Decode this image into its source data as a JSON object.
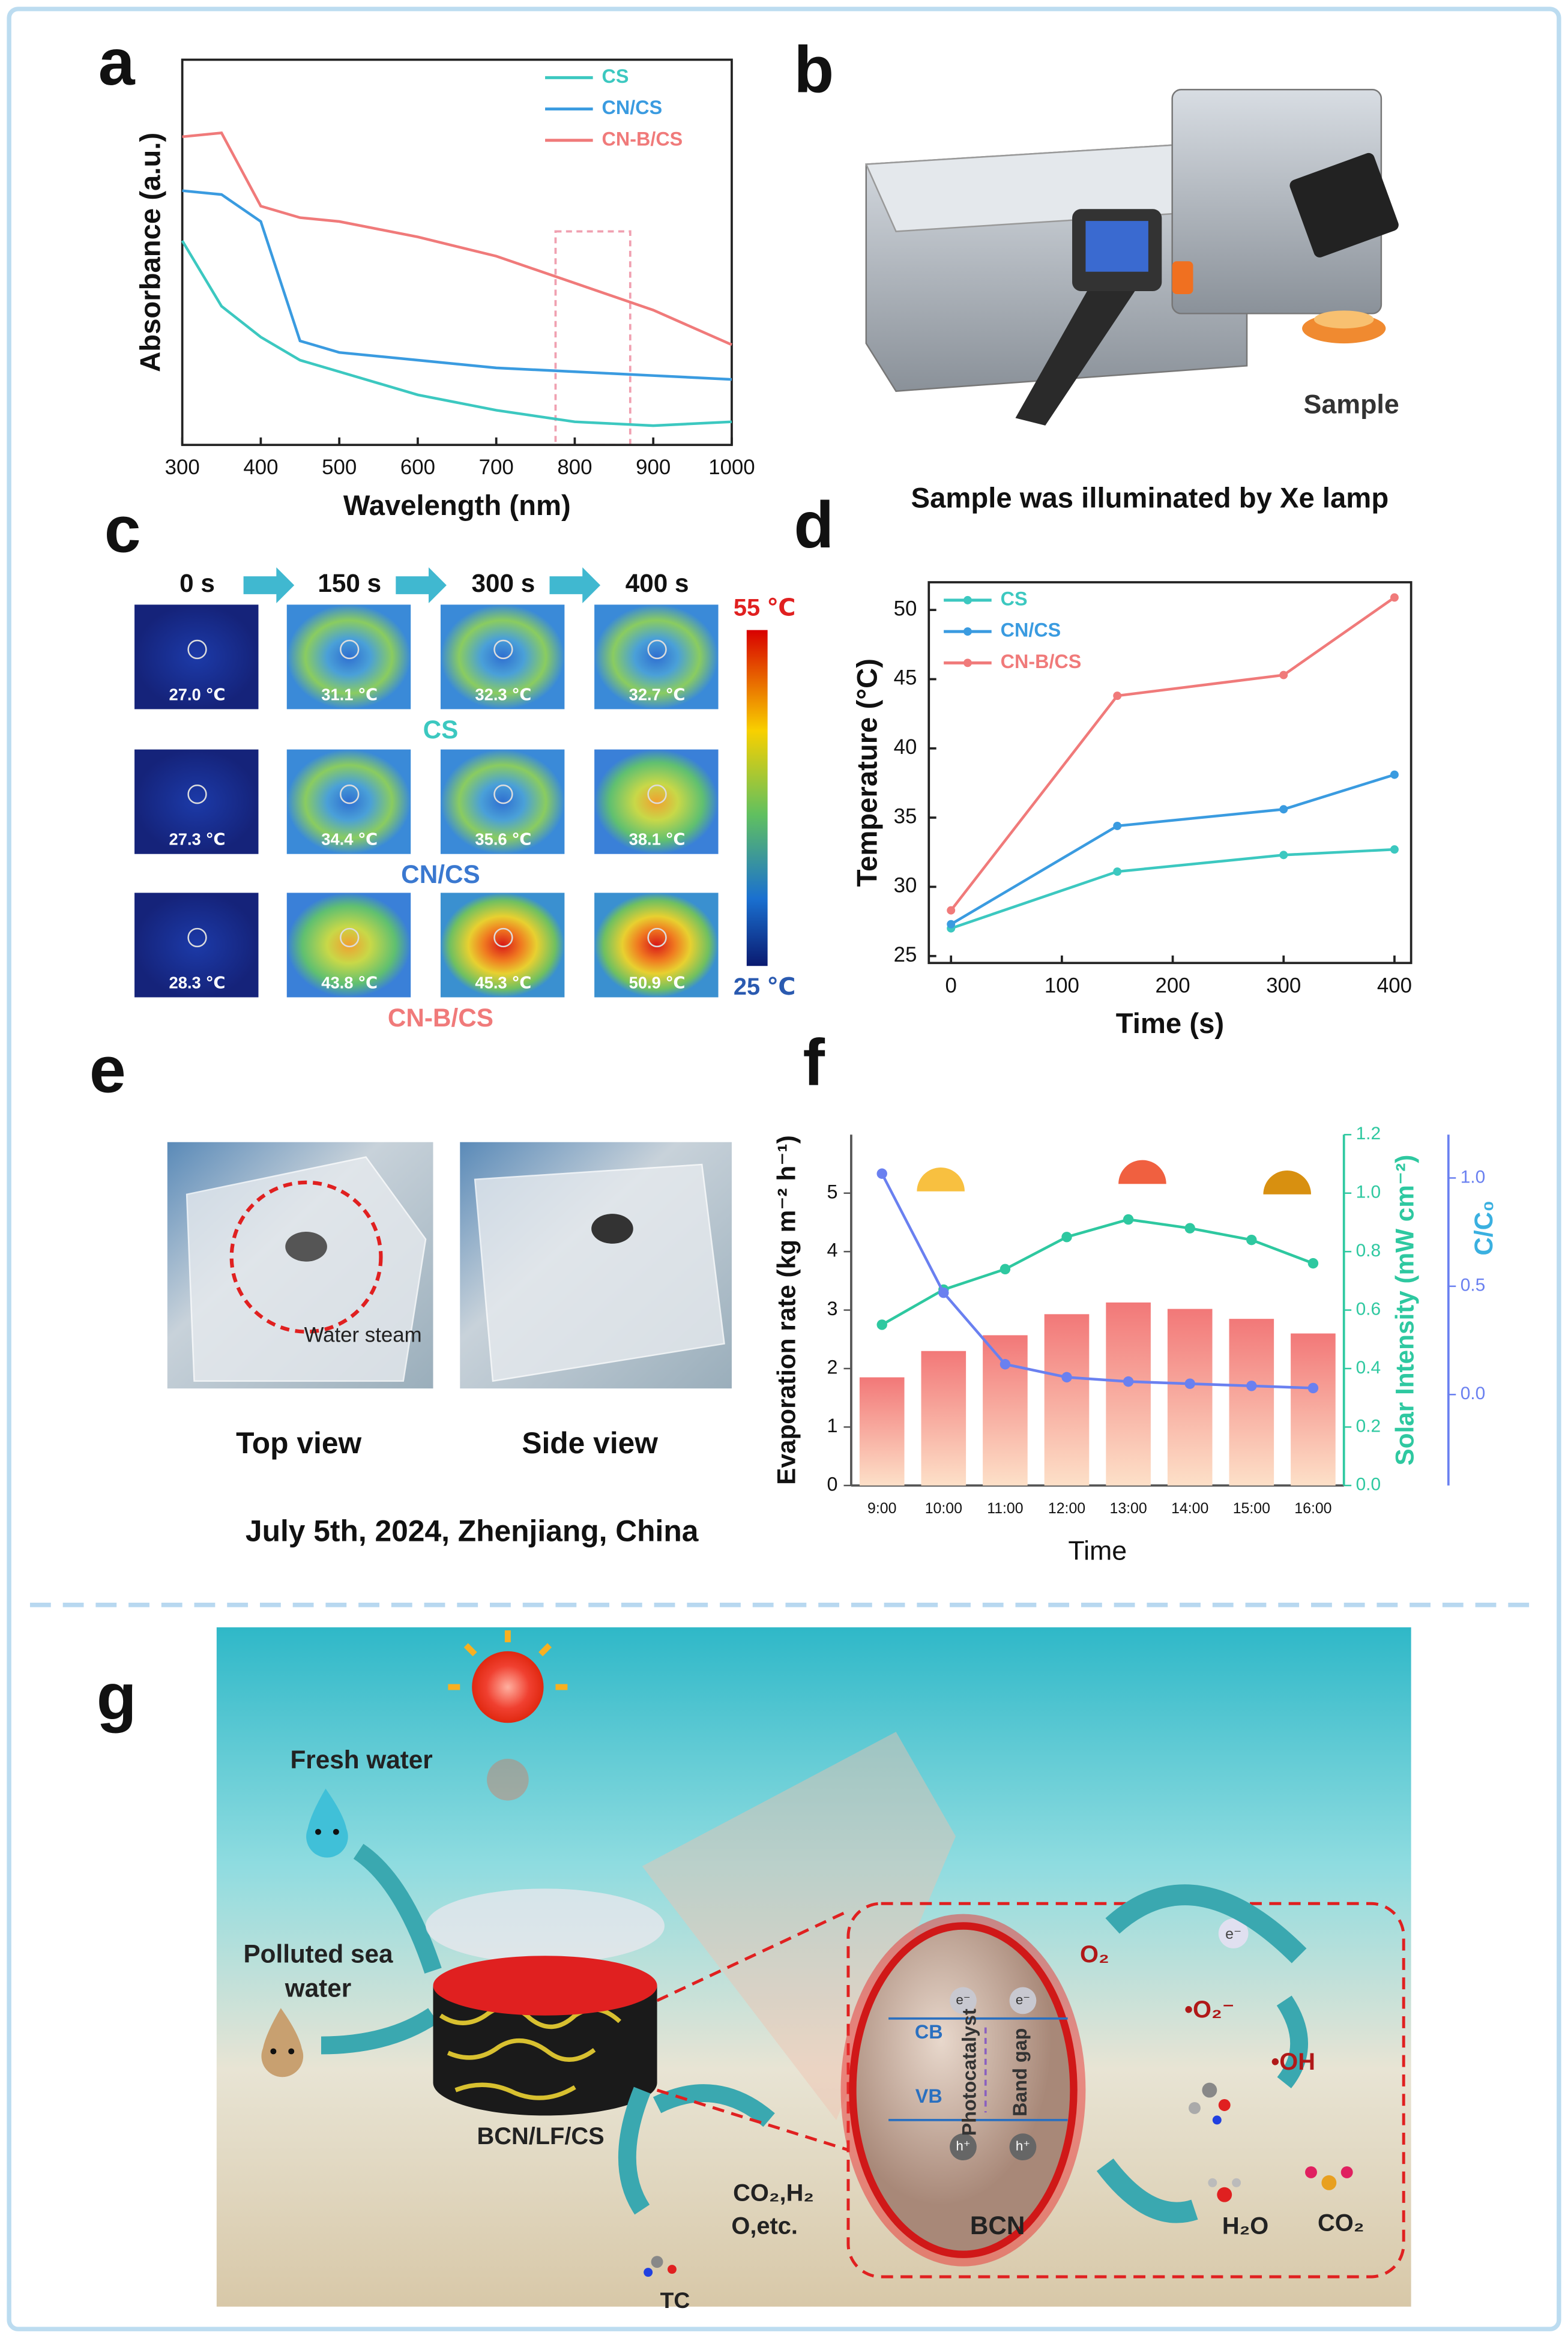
{
  "chart_data": [
    {
      "type": "line",
      "panel": "a",
      "xlabel": "Wavelength (nm)",
      "ylabel": "Absorbance (a.u.)",
      "x": [
        300,
        350,
        400,
        450,
        500,
        600,
        700,
        800,
        900,
        1000
      ],
      "xlim": [
        300,
        1000
      ],
      "xticks": [
        300,
        400,
        500,
        600,
        700,
        800,
        900,
        1000
      ],
      "ylim": [
        0,
        1
      ],
      "legend": "upper right",
      "markers": false,
      "series": [
        {
          "name": "CS",
          "color": "#3cc8c0",
          "values": [
            0.53,
            0.36,
            0.28,
            0.22,
            0.19,
            0.13,
            0.09,
            0.06,
            0.05,
            0.06
          ]
        },
        {
          "name": "CN/CS",
          "color": "#3a9be0",
          "values": [
            0.66,
            0.65,
            0.58,
            0.27,
            0.24,
            0.22,
            0.2,
            0.19,
            0.18,
            0.17
          ]
        },
        {
          "name": "CN-B/CS",
          "color": "#f07a7a",
          "values": [
            0.8,
            0.81,
            0.62,
            0.59,
            0.58,
            0.54,
            0.49,
            0.42,
            0.35,
            0.26
          ]
        }
      ]
    },
    {
      "type": "line",
      "panel": "d",
      "xlabel": "Time (s)",
      "ylabel": "Temperature (°C)",
      "x": [
        0,
        150,
        300,
        400
      ],
      "xlim": [
        -20,
        415
      ],
      "xticks": [
        0,
        100,
        200,
        300,
        400
      ],
      "ylim": [
        24.5,
        52
      ],
      "yticks": [
        25,
        30,
        35,
        40,
        45,
        50
      ],
      "legend": "upper left",
      "markers": true,
      "series": [
        {
          "name": "CS",
          "color": "#3cc8c0",
          "values": [
            27.0,
            31.1,
            32.3,
            32.7
          ]
        },
        {
          "name": "CN/CS",
          "color": "#3a9be0",
          "values": [
            27.3,
            34.4,
            35.6,
            38.1
          ]
        },
        {
          "name": "CN-B/CS",
          "color": "#f07a7a",
          "values": [
            28.3,
            43.8,
            45.3,
            50.9
          ]
        }
      ]
    },
    {
      "type": "bar",
      "panel": "f",
      "xlabel": "Time",
      "ylabel": "Evaporation rate (kg m⁻² h⁻¹)",
      "y2label": "Solar Intensity (mW cm⁻²)",
      "y3label": "C/C₀",
      "categories": [
        "9:00",
        "10:00",
        "11:00",
        "12:00",
        "13:00",
        "14:00",
        "15:00",
        "16:00"
      ],
      "values": [
        1.85,
        2.3,
        2.57,
        2.93,
        3.13,
        3.02,
        2.85,
        2.6
      ],
      "color": "#f27878",
      "ylim": [
        0,
        6
      ],
      "yticks": [
        0,
        1,
        2,
        3,
        4,
        5
      ],
      "y2lim": [
        0,
        1.2
      ],
      "y2ticks": [
        {
          "value": 0,
          "label": "0.0"
        },
        0.2,
        0.4,
        0.6,
        0.8,
        {
          "value": 1,
          "label": "1.0"
        },
        1.2
      ],
      "y3lim": [
        -0.42,
        1.2
      ],
      "y3ticks": [
        {
          "value": 0,
          "label": "0.0"
        },
        0.5,
        {
          "value": 1,
          "label": "1.0"
        }
      ],
      "series": [
        {
          "axis": "y2",
          "color": "#2ec8a0",
          "values": [
            0.55,
            0.67,
            0.74,
            0.85,
            0.91,
            0.88,
            0.84,
            0.76
          ]
        },
        {
          "axis": "y3",
          "color": "#6a80f0",
          "values": [
            1.02,
            0.47,
            0.14,
            0.08,
            0.06,
            0.05,
            0.04,
            0.03
          ]
        }
      ]
    }
  ],
  "panel_b": {
    "panel": "b",
    "sample": "Sample",
    "caption": "Sample was illuminated by Xe lamp"
  },
  "panel_c": {
    "panel": "c",
    "times": [
      "0 s",
      "150 s",
      "300 s",
      "400 s"
    ],
    "rows": [
      {
        "name": "CS",
        "temps": [
          "27.0 ℃",
          "31.1 ℃",
          "32.3 ℃",
          "32.7 ℃"
        ]
      },
      {
        "name": "CN/CS",
        "temps": [
          "27.3 ℃",
          "34.4 ℃",
          "35.6 ℃",
          "38.1 ℃"
        ]
      },
      {
        "name": "CN-B/CS",
        "temps": [
          "28.3 ℃",
          "43.8 ℃",
          "45.3 ℃",
          "50.9 ℃"
        ]
      }
    ],
    "scale_max": "55 ℃",
    "scale_min": "25 ℃"
  },
  "panel_e": {
    "panel": "e",
    "annotation": "Water steam",
    "views": [
      "Top view",
      "Side view"
    ],
    "caption": "July 5th, 2024, Zhenjiang, China"
  },
  "panel_g": {
    "panel": "g",
    "fresh": "Fresh water",
    "polluted": [
      "Polluted sea",
      "water"
    ],
    "device": "BCN/LF/CS",
    "products": [
      "CO₂,H₂",
      "O,etc."
    ],
    "tc": "TC",
    "o2": "O₂",
    "electron": "e⁻",
    "superoxide": "•O₂⁻",
    "hydroxyl": "•OH",
    "cb": "CB",
    "vb": "VB",
    "photocatalyst": "Photocatalyst",
    "band_gap": "Band gap",
    "bcn": "BCN",
    "h2o": "H₂O",
    "co2": "CO₂",
    "e_band": [
      "e⁻",
      "e⁻"
    ],
    "h_band": [
      "h⁺",
      "h⁺"
    ]
  }
}
